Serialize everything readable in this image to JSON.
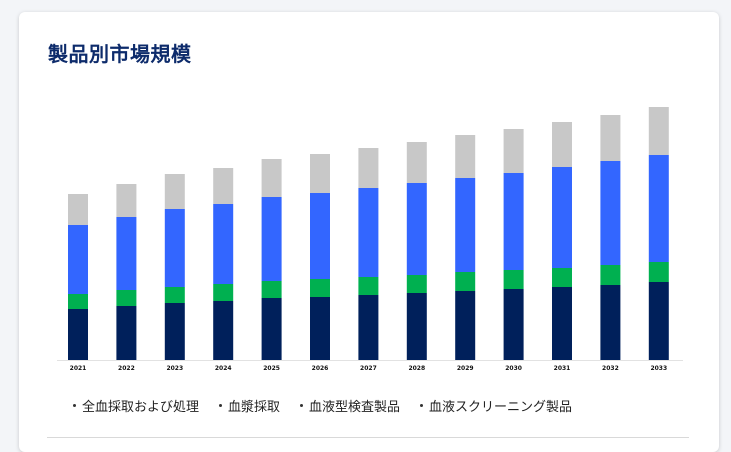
{
  "title": "製品別市場規模",
  "chart_data": {
    "type": "bar",
    "stacked": true,
    "categories": [
      "2021",
      "2022",
      "2023",
      "2024",
      "2025",
      "2026",
      "2027",
      "2028",
      "2029",
      "2030",
      "2031",
      "2032",
      "2033"
    ],
    "series": [
      {
        "name": "全血採取および処理",
        "color": "#00205b",
        "values": [
          51,
          54,
          57,
          59,
          62,
          63,
          65,
          67,
          69,
          71,
          73,
          75,
          78
        ]
      },
      {
        "name": "血漿採取",
        "color": "#00b050",
        "values": [
          15,
          16,
          16,
          17,
          17,
          18,
          18,
          18,
          19,
          19,
          19,
          20,
          20
        ]
      },
      {
        "name": "血液型検査製品",
        "color": "#3366ff",
        "values": [
          69,
          73,
          78,
          80,
          84,
          86,
          89,
          92,
          94,
          97,
          101,
          104,
          107
        ]
      },
      {
        "name": "血液スクリーニング製品",
        "color": "#c8c8c8",
        "values": [
          31,
          33,
          35,
          36,
          38,
          39,
          40,
          41,
          43,
          44,
          45,
          46,
          48
        ]
      }
    ],
    "ylim": [
      0,
      260
    ],
    "legend_position": "bottom",
    "grid": false
  }
}
